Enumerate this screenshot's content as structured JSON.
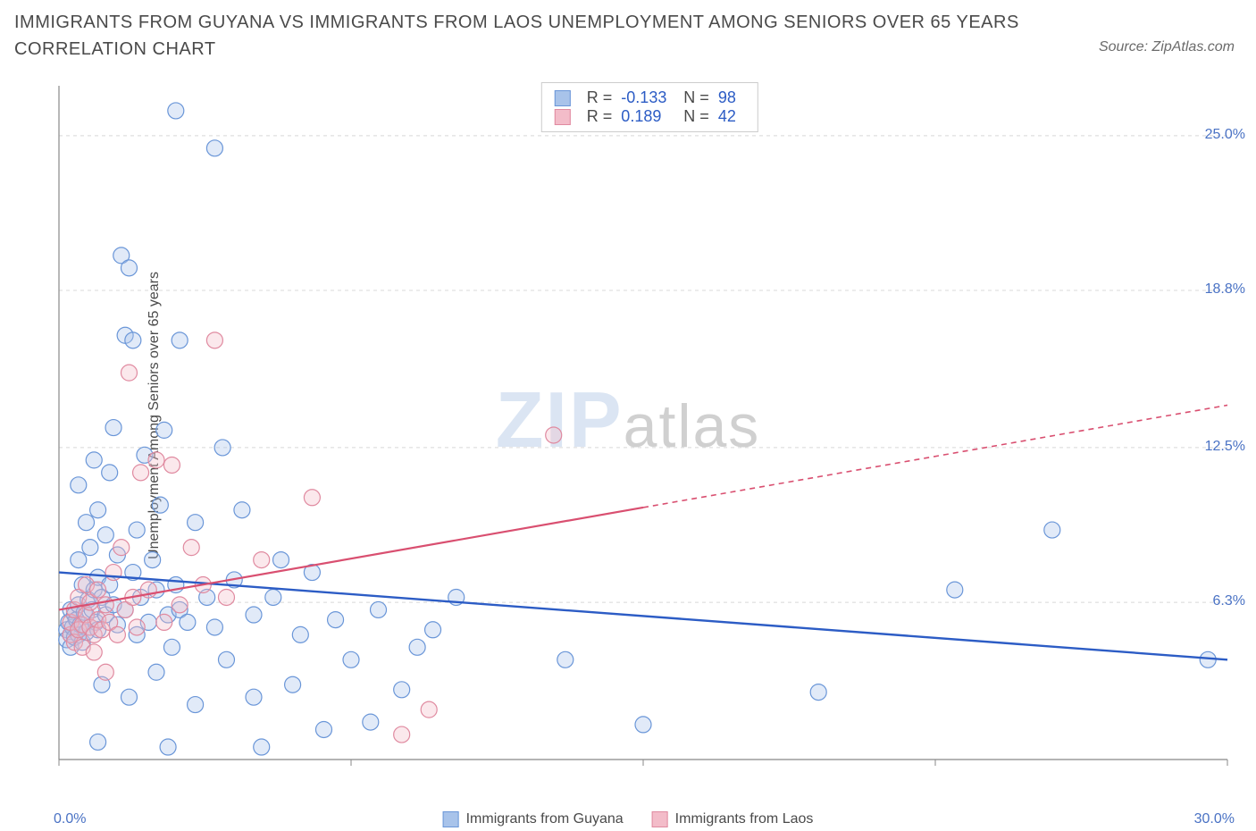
{
  "title": "IMMIGRANTS FROM GUYANA VS IMMIGRANTS FROM LAOS UNEMPLOYMENT AMONG SENIORS OVER 65 YEARS CORRELATION CHART",
  "source": "Source: ZipAtlas.com",
  "ylabel": "Unemployment Among Seniors over 65 years",
  "watermark_a": "ZIP",
  "watermark_b": "atlas",
  "chart": {
    "type": "scatter",
    "xlim": [
      0,
      30
    ],
    "ylim": [
      0,
      27
    ],
    "xticks_major": [
      0,
      7.5,
      15,
      22.5,
      30
    ],
    "yticks": [
      6.3,
      12.5,
      18.8,
      25.0
    ],
    "ytick_labels": [
      "6.3%",
      "12.5%",
      "18.8%",
      "25.0%"
    ],
    "xmin_label": "0.0%",
    "xmax_label": "30.0%",
    "background_color": "#ffffff",
    "grid_color": "#d8d8d8",
    "axis_color": "#888888",
    "marker_radius": 9,
    "marker_stroke_width": 1.2,
    "marker_fill_opacity": 0.35,
    "series": [
      {
        "name": "Immigrants from Guyana",
        "color_stroke": "#6a96d8",
        "color_fill": "#a8c3ea",
        "line_color": "#2c5cc5",
        "R": "-0.133",
        "N": "98",
        "trend": {
          "x1": 0,
          "y1": 7.5,
          "x2": 30,
          "y2": 4.0,
          "dash_from_x": null
        },
        "points": [
          [
            0.2,
            5.2
          ],
          [
            0.2,
            4.8
          ],
          [
            0.25,
            5.5
          ],
          [
            0.3,
            5.0
          ],
          [
            0.3,
            4.5
          ],
          [
            0.3,
            6.0
          ],
          [
            0.35,
            5.3
          ],
          [
            0.4,
            5.8
          ],
          [
            0.4,
            4.9
          ],
          [
            0.45,
            5.6
          ],
          [
            0.5,
            6.2
          ],
          [
            0.5,
            5.0
          ],
          [
            0.5,
            11.0
          ],
          [
            0.5,
            8.0
          ],
          [
            0.55,
            5.4
          ],
          [
            0.6,
            4.7
          ],
          [
            0.6,
            7.0
          ],
          [
            0.65,
            5.9
          ],
          [
            0.7,
            9.5
          ],
          [
            0.7,
            5.1
          ],
          [
            0.75,
            6.4
          ],
          [
            0.8,
            8.5
          ],
          [
            0.8,
            5.3
          ],
          [
            0.85,
            6.0
          ],
          [
            0.9,
            6.8
          ],
          [
            0.9,
            12.0
          ],
          [
            0.95,
            5.5
          ],
          [
            1.0,
            7.3
          ],
          [
            1.0,
            10.0
          ],
          [
            1.0,
            5.2
          ],
          [
            1.1,
            3.0
          ],
          [
            1.1,
            6.5
          ],
          [
            1.2,
            9.0
          ],
          [
            1.2,
            5.8
          ],
          [
            1.3,
            11.5
          ],
          [
            1.3,
            7.0
          ],
          [
            1.4,
            13.3
          ],
          [
            1.4,
            6.2
          ],
          [
            1.5,
            5.4
          ],
          [
            1.5,
            8.2
          ],
          [
            1.6,
            20.2
          ],
          [
            1.7,
            17.0
          ],
          [
            1.7,
            6.0
          ],
          [
            1.8,
            19.7
          ],
          [
            1.8,
            2.5
          ],
          [
            1.9,
            16.8
          ],
          [
            1.9,
            7.5
          ],
          [
            2.0,
            9.2
          ],
          [
            2.0,
            5.0
          ],
          [
            2.1,
            6.5
          ],
          [
            2.2,
            12.2
          ],
          [
            2.3,
            5.5
          ],
          [
            2.4,
            8.0
          ],
          [
            2.5,
            3.5
          ],
          [
            2.5,
            6.8
          ],
          [
            2.6,
            10.2
          ],
          [
            2.7,
            13.2
          ],
          [
            2.8,
            5.8
          ],
          [
            2.9,
            4.5
          ],
          [
            3.0,
            7.0
          ],
          [
            3.0,
            26.0
          ],
          [
            3.1,
            6.0
          ],
          [
            3.1,
            16.8
          ],
          [
            3.3,
            5.5
          ],
          [
            3.5,
            9.5
          ],
          [
            3.5,
            2.2
          ],
          [
            3.8,
            6.5
          ],
          [
            4.0,
            24.5
          ],
          [
            4.0,
            5.3
          ],
          [
            4.2,
            12.5
          ],
          [
            4.3,
            4.0
          ],
          [
            4.5,
            7.2
          ],
          [
            4.7,
            10.0
          ],
          [
            5.0,
            5.8
          ],
          [
            5.0,
            2.5
          ],
          [
            5.2,
            0.5
          ],
          [
            5.5,
            6.5
          ],
          [
            5.7,
            8.0
          ],
          [
            6.0,
            3.0
          ],
          [
            6.2,
            5.0
          ],
          [
            6.5,
            7.5
          ],
          [
            6.8,
            1.2
          ],
          [
            7.1,
            5.6
          ],
          [
            7.5,
            4.0
          ],
          [
            8.0,
            1.5
          ],
          [
            8.2,
            6.0
          ],
          [
            8.8,
            2.8
          ],
          [
            9.2,
            4.5
          ],
          [
            9.6,
            5.2
          ],
          [
            10.2,
            6.5
          ],
          [
            13.0,
            4.0
          ],
          [
            15.0,
            1.4
          ],
          [
            19.5,
            2.7
          ],
          [
            23.0,
            6.8
          ],
          [
            25.5,
            9.2
          ],
          [
            29.5,
            4.0
          ],
          [
            1.0,
            0.7
          ],
          [
            2.8,
            0.5
          ]
        ]
      },
      {
        "name": "Immigrants from Laos",
        "color_stroke": "#e08aa0",
        "color_fill": "#f3bcc9",
        "line_color": "#d94f70",
        "R": "0.189",
        "N": "42",
        "trend": {
          "x1": 0,
          "y1": 6.0,
          "x2": 30,
          "y2": 14.2,
          "dash_from_x": 15
        },
        "points": [
          [
            0.3,
            5.0
          ],
          [
            0.3,
            5.5
          ],
          [
            0.4,
            4.7
          ],
          [
            0.4,
            6.0
          ],
          [
            0.5,
            5.2
          ],
          [
            0.5,
            6.5
          ],
          [
            0.6,
            5.4
          ],
          [
            0.6,
            4.5
          ],
          [
            0.7,
            5.8
          ],
          [
            0.7,
            7.0
          ],
          [
            0.8,
            5.3
          ],
          [
            0.8,
            6.3
          ],
          [
            0.9,
            5.0
          ],
          [
            0.9,
            4.3
          ],
          [
            1.0,
            5.6
          ],
          [
            1.0,
            6.8
          ],
          [
            1.1,
            5.2
          ],
          [
            1.2,
            6.2
          ],
          [
            1.2,
            3.5
          ],
          [
            1.3,
            5.5
          ],
          [
            1.4,
            7.5
          ],
          [
            1.5,
            5.0
          ],
          [
            1.6,
            8.5
          ],
          [
            1.7,
            6.0
          ],
          [
            1.8,
            15.5
          ],
          [
            1.9,
            6.5
          ],
          [
            2.0,
            5.3
          ],
          [
            2.1,
            11.5
          ],
          [
            2.3,
            6.8
          ],
          [
            2.5,
            12.0
          ],
          [
            2.7,
            5.5
          ],
          [
            2.9,
            11.8
          ],
          [
            3.1,
            6.2
          ],
          [
            3.4,
            8.5
          ],
          [
            3.7,
            7.0
          ],
          [
            4.0,
            16.8
          ],
          [
            4.3,
            6.5
          ],
          [
            5.2,
            8.0
          ],
          [
            6.5,
            10.5
          ],
          [
            8.8,
            1.0
          ],
          [
            9.5,
            2.0
          ],
          [
            12.7,
            13.0
          ]
        ]
      }
    ],
    "stats_labels": {
      "R": "R =",
      "N": "N ="
    }
  },
  "legend": {
    "s1": "Immigrants from Guyana",
    "s2": "Immigrants from Laos"
  }
}
